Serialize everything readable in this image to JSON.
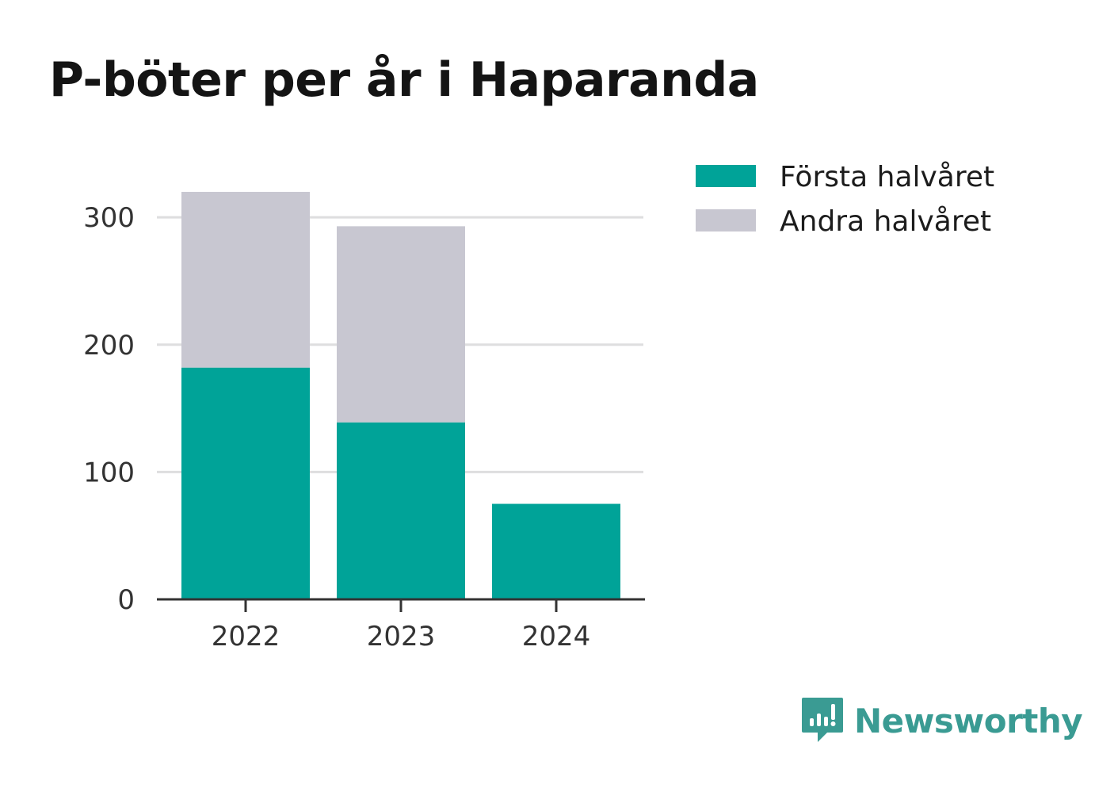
{
  "chart_data": {
    "type": "bar",
    "stacked": true,
    "title": "P-böter per år i Haparanda",
    "categories": [
      "2022",
      "2023",
      "2024"
    ],
    "series": [
      {
        "name": "Första halvåret",
        "color": "#00a398",
        "values": [
          182,
          139,
          75
        ]
      },
      {
        "name": "Andra halvåret",
        "color": "#c8c7d1",
        "values": [
          138,
          154,
          0
        ]
      }
    ],
    "ylim": [
      0,
      320
    ],
    "yticks": [
      0,
      100,
      200,
      300
    ],
    "grid": true,
    "legend": "top-right"
  },
  "brand": {
    "name": "Newsworthy",
    "icon": "newsworthy-logo-icon",
    "color": "#3a9b93"
  }
}
